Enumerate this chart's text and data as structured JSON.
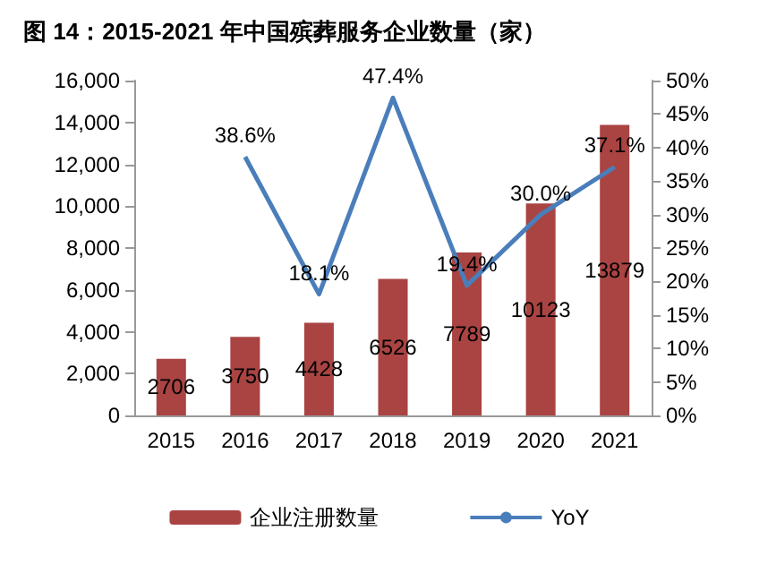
{
  "chart_data": {
    "type": "bar",
    "title": "图 14：2015-2021 年中国殡葬服务企业数量（家）",
    "categories": [
      "2015",
      "2016",
      "2017",
      "2018",
      "2019",
      "2020",
      "2021"
    ],
    "series": [
      {
        "name": "企业注册数量",
        "color": "#a94442",
        "values": [
          2706,
          3750,
          4428,
          6526,
          7789,
          10123,
          13879
        ]
      },
      {
        "name": "YoY",
        "type": "line",
        "axis": "y2",
        "color": "#4a7ebb",
        "values": [
          null,
          38.6,
          18.1,
          47.4,
          19.4,
          30.0,
          37.1
        ],
        "value_labels": [
          null,
          "38.6%",
          "18.1%",
          "47.4%",
          "19.4%",
          "30.0%",
          "37.1%"
        ]
      }
    ],
    "ylim": [
      0,
      16000
    ],
    "yticks": [
      0,
      {
        "value": 2000,
        "label": "2,000"
      },
      {
        "value": 4000,
        "label": "4,000"
      },
      {
        "value": 6000,
        "label": "6,000"
      },
      {
        "value": 8000,
        "label": "8,000"
      },
      {
        "value": 10000,
        "label": "10,000"
      },
      {
        "value": 12000,
        "label": "12,000"
      },
      {
        "value": 14000,
        "label": "14,000"
      },
      {
        "value": 16000,
        "label": "16,000"
      }
    ],
    "y2lim": [
      0,
      50
    ],
    "y2ticks": [
      {
        "value": 0,
        "label": "0%"
      },
      {
        "value": 5,
        "label": "5%"
      },
      {
        "value": 10,
        "label": "10%"
      },
      {
        "value": 15,
        "label": "15%"
      },
      {
        "value": 20,
        "label": "20%"
      },
      {
        "value": 25,
        "label": "25%"
      },
      {
        "value": 30,
        "label": "30%"
      },
      {
        "value": 35,
        "label": "35%"
      },
      {
        "value": 40,
        "label": "40%"
      },
      {
        "value": 45,
        "label": "45%"
      },
      {
        "value": 50,
        "label": "50%"
      }
    ],
    "data_labels": true,
    "legend": "bottom",
    "grid": false,
    "marker": "none"
  }
}
